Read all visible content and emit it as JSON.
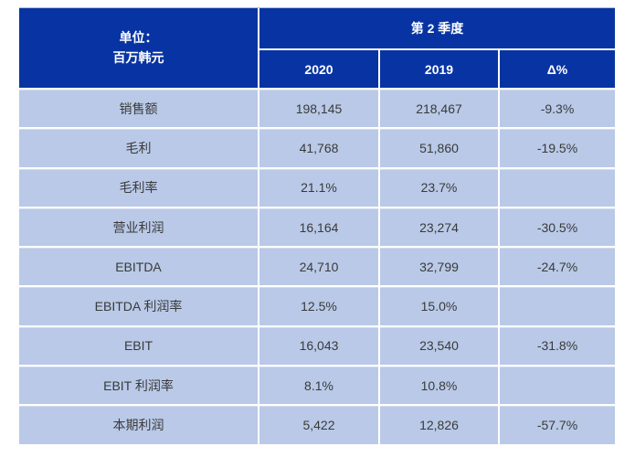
{
  "colors": {
    "header_bg": "#0834a3",
    "row_bg": "#b9c9e7",
    "grid_border": "#ffffff",
    "header_text": "#ffffff",
    "cell_text": "#3a3a3a"
  },
  "header": {
    "unit_line1": "单位：",
    "unit_line2": "百万韩元",
    "quarter": "第 2 季度",
    "columns": [
      "2020",
      "2019",
      "Δ%"
    ]
  },
  "rows": [
    {
      "label": "销售额",
      "y2020": "198,145",
      "y2019": "218,467",
      "delta": "-9.3%"
    },
    {
      "label": "毛利",
      "y2020": "41,768",
      "y2019": "51,860",
      "delta": "-19.5%"
    },
    {
      "label": "毛利率",
      "y2020": "21.1%",
      "y2019": "23.7%",
      "delta": ""
    },
    {
      "label": "营业利润",
      "y2020": "16,164",
      "y2019": "23,274",
      "delta": "-30.5%"
    },
    {
      "label": "EBITDA",
      "y2020": "24,710",
      "y2019": "32,799",
      "delta": "-24.7%"
    },
    {
      "label": "EBITDA 利润率",
      "y2020": "12.5%",
      "y2019": "15.0%",
      "delta": ""
    },
    {
      "label": "EBIT",
      "y2020": "16,043",
      "y2019": "23,540",
      "delta": "-31.8%"
    },
    {
      "label": "EBIT 利润率",
      "y2020": "8.1%",
      "y2019": "10.8%",
      "delta": ""
    },
    {
      "label": "本期利润",
      "y2020": "5,422",
      "y2019": "12,826",
      "delta": "-57.7%"
    }
  ]
}
